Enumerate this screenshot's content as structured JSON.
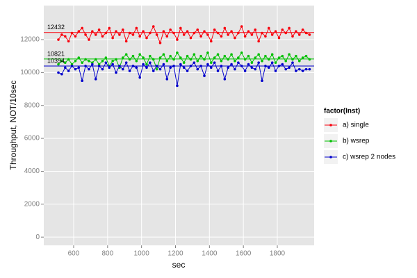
{
  "chart_data": {
    "type": "line",
    "xlabel": "sec",
    "ylabel": "Throughput, NOT/10sec",
    "legend_title": "factor(Inst)",
    "legend": "right",
    "grid": true,
    "xlim": [
      424,
      2017
    ],
    "xticks": [
      600,
      800,
      1000,
      1200,
      1400,
      1600,
      1800
    ],
    "ylim": [
      -500,
      14070
    ],
    "yticks": [
      0,
      2000,
      4000,
      6000,
      8000,
      10000,
      12000
    ],
    "x": [
      510,
      530,
      550,
      570,
      590,
      610,
      630,
      650,
      670,
      690,
      710,
      730,
      750,
      770,
      790,
      810,
      830,
      850,
      870,
      890,
      910,
      930,
      950,
      970,
      990,
      1010,
      1030,
      1050,
      1070,
      1090,
      1110,
      1130,
      1150,
      1170,
      1190,
      1210,
      1230,
      1250,
      1270,
      1290,
      1310,
      1330,
      1350,
      1370,
      1390,
      1410,
      1430,
      1450,
      1470,
      1490,
      1510,
      1530,
      1550,
      1570,
      1590,
      1610,
      1630,
      1650,
      1670,
      1690,
      1710,
      1730,
      1750,
      1770,
      1790,
      1810,
      1830,
      1850,
      1870,
      1890,
      1910,
      1930,
      1950,
      1970,
      1990
    ],
    "series": [
      {
        "name": "a) single",
        "color": "#f8000d",
        "values": [
          12000,
          12300,
          12200,
          11900,
          12400,
          12200,
          12500,
          12700,
          12300,
          12000,
          12500,
          12300,
          12600,
          12200,
          12400,
          12700,
          12100,
          12500,
          12300,
          12600,
          11900,
          12400,
          12300,
          12700,
          12200,
          12500,
          12100,
          12400,
          12800,
          12300,
          11800,
          12500,
          12200,
          12600,
          12400,
          12000,
          12700,
          12300,
          12500,
          12100,
          12400,
          12600,
          12200,
          12500,
          12300,
          11900,
          12600,
          12400,
          12200,
          12700,
          12300,
          12500,
          12100,
          12400,
          12800,
          12200,
          12500,
          12300,
          12600,
          11900,
          12400,
          12200,
          12700,
          12300,
          12500,
          12100,
          12600,
          12400,
          12700,
          12200,
          12500,
          12300,
          12600,
          12400,
          12300
        ]
      },
      {
        "name": "b) wsrep",
        "color": "#00c000",
        "values": [
          10500,
          10700,
          10600,
          10800,
          10500,
          10700,
          10900,
          10600,
          10800,
          10700,
          10600,
          10800,
          10500,
          10700,
          10900,
          10400,
          10700,
          10800,
          10300,
          10900,
          11100,
          10800,
          11000,
          10700,
          11100,
          10900,
          10500,
          11000,
          10800,
          10200,
          10900,
          11100,
          10700,
          11000,
          10800,
          11200,
          10900,
          10600,
          11000,
          10800,
          11100,
          10700,
          11000,
          10800,
          11200,
          10600,
          10900,
          11100,
          10700,
          11000,
          10800,
          11100,
          10700,
          10900,
          11200,
          10800,
          11000,
          10600,
          10900,
          11100,
          10700,
          11000,
          10800,
          11100,
          10600,
          10900,
          11000,
          10700,
          11100,
          10800,
          11000,
          10700,
          10900,
          11000,
          10800
        ]
      },
      {
        "name": "c) wsrep 2 nodes",
        "color": "#0000cc",
        "values": [
          10000,
          9900,
          10300,
          10100,
          10400,
          10200,
          10300,
          9500,
          10400,
          10200,
          10500,
          9600,
          10400,
          10200,
          10600,
          10300,
          10500,
          10000,
          10400,
          10200,
          10600,
          10100,
          10400,
          10300,
          9700,
          10500,
          10300,
          10600,
          10100,
          10400,
          10200,
          10500,
          9600,
          10300,
          10400,
          9200,
          10500,
          10300,
          10100,
          10400,
          10600,
          10200,
          10400,
          9800,
          10500,
          10300,
          10600,
          10100,
          10400,
          9600,
          10300,
          10500,
          10200,
          10600,
          10400,
          10100,
          10500,
          10300,
          10200,
          10600,
          9500,
          10400,
          10300,
          10600,
          10100,
          10400,
          10500,
          10200,
          10300,
          10600,
          10100,
          10200,
          10100,
          10200,
          10200
        ]
      }
    ],
    "hlines": [
      12432,
      10821,
      10394
    ]
  }
}
